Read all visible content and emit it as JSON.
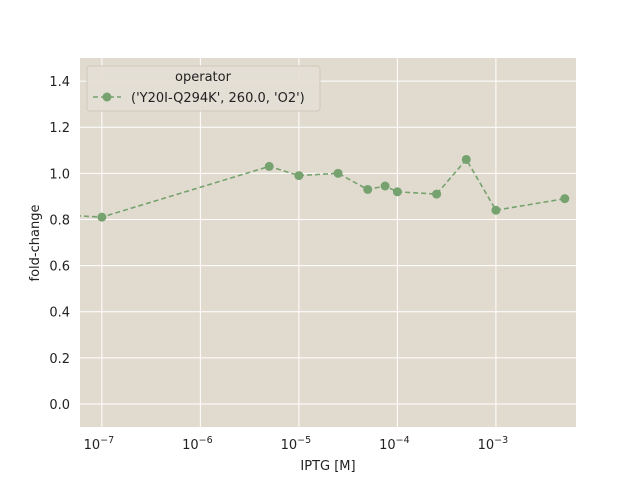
{
  "chart_data": {
    "type": "line",
    "xscale": "log",
    "xlabel": "IPTG [M]",
    "ylabel": "fold-change",
    "xlim": [
      6e-08,
      0.0065
    ],
    "ylim": [
      -0.1,
      1.5
    ],
    "xticks": [
      {
        "value": 1e-07,
        "base": "10",
        "exp": "−7"
      },
      {
        "value": 1e-06,
        "base": "10",
        "exp": "−6"
      },
      {
        "value": 1e-05,
        "base": "10",
        "exp": "−5"
      },
      {
        "value": 0.0001,
        "base": "10",
        "exp": "−4"
      },
      {
        "value": 0.001,
        "base": "10",
        "exp": "−3"
      }
    ],
    "yticks": [
      {
        "value": 0.0,
        "label": "0.0"
      },
      {
        "value": 0.2,
        "label": "0.2"
      },
      {
        "value": 0.4,
        "label": "0.4"
      },
      {
        "value": 0.6,
        "label": "0.6"
      },
      {
        "value": 0.8,
        "label": "0.8"
      },
      {
        "value": 1.0,
        "label": "1.0"
      },
      {
        "value": 1.2,
        "label": "1.2"
      },
      {
        "value": 1.4,
        "label": "1.4"
      }
    ],
    "grid": true,
    "legend": {
      "title": "operator",
      "placement": "top-left"
    },
    "plot_bg": "#e1dbcf",
    "series": [
      {
        "name": "('Y20I-Q294K', 260.0, 'O2')",
        "color": "#76a26f",
        "x": [
          0,
          1e-07,
          5e-06,
          1e-05,
          2.5e-05,
          5e-05,
          7.5e-05,
          0.0001,
          0.00025,
          0.0005,
          0.001,
          0.005
        ],
        "y": [
          0.82,
          0.81,
          1.03,
          0.99,
          1.0,
          0.93,
          0.945,
          0.92,
          0.91,
          1.06,
          0.84,
          0.89
        ]
      }
    ]
  }
}
